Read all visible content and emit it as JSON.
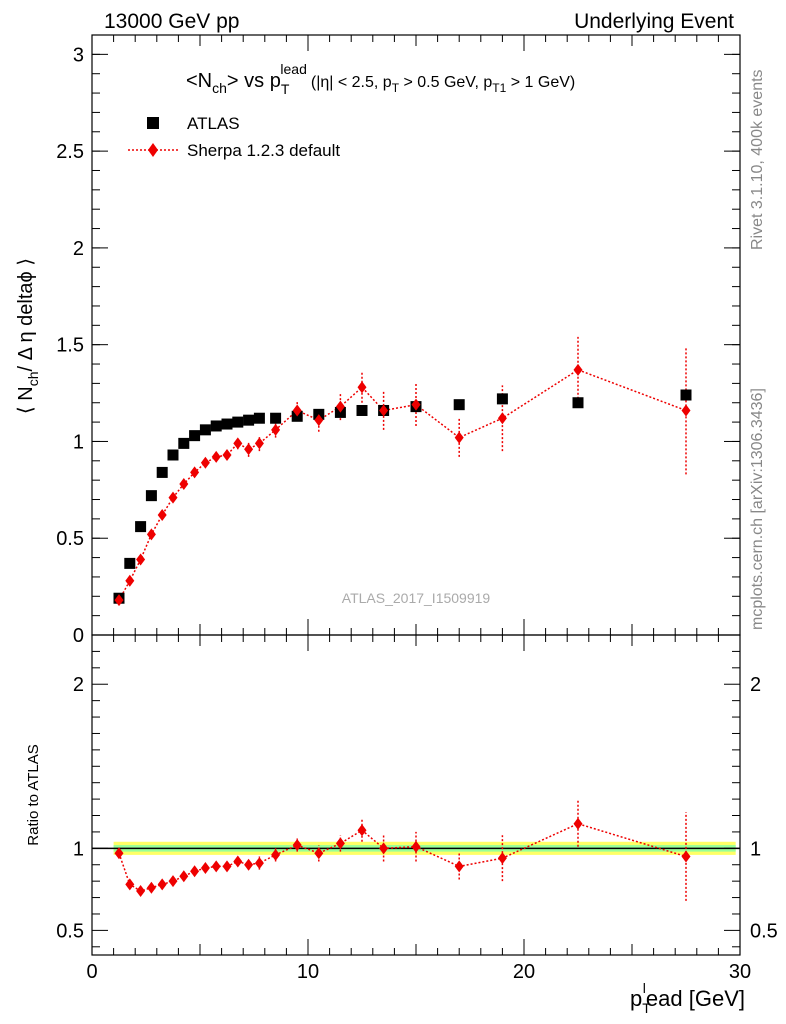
{
  "header": {
    "left": "13000 GeV pp",
    "right": "Underlying Event"
  },
  "plot_title": {
    "main_pre": "<N",
    "main_sub": "ch",
    "main_mid": "> vs p",
    "main_sub2": "T",
    "main_sup": "lead",
    "cuts_a": "(|η| < 2.5, p",
    "cuts_sub1": "T",
    "cuts_b": " > 0.5 GeV, p",
    "cuts_sub2": "T1",
    "cuts_c": " > 1 GeV)"
  },
  "side_labels": {
    "rivet": "Rivet 3.1.10,  400k events",
    "mcplots": "mcplots.cern.ch [arXiv:1306.3436]"
  },
  "analysis_label": "ATLAS_2017_I1509919",
  "y_label_main": {
    "a": "⟨ N",
    "sub": "ch",
    "b": "/ Δ η deltaϕ ⟩"
  },
  "y_label_ratio": "Ratio to ATLAS",
  "x_label": {
    "a": "p",
    "sub": "T",
    "sup": "l",
    "b": "ead [GeV]"
  },
  "legend": {
    "position": "top-left",
    "entries": [
      "ATLAS",
      "Sherpa 1.2.3 default"
    ]
  },
  "colors": {
    "data": "#000000",
    "mc": "#ee0000",
    "band_outer": "#ffff66",
    "band_inner": "#99ff99"
  },
  "chart_data": [
    {
      "type": "scatter",
      "panel": "main",
      "xlim": [
        0,
        30
      ],
      "ylim": [
        0,
        3.1
      ],
      "x_ticks": [
        0,
        10,
        20,
        30
      ],
      "y_ticks": [
        0,
        0.5,
        1,
        1.5,
        2,
        2.5,
        3
      ],
      "y_tick_labels": [
        "0",
        "0.5",
        "1",
        "1.5",
        "2",
        "2.5",
        "3"
      ],
      "series": [
        {
          "name": "ATLAS",
          "marker": "square",
          "x": [
            1.25,
            1.75,
            2.25,
            2.75,
            3.25,
            3.75,
            4.25,
            4.75,
            5.25,
            5.75,
            6.25,
            6.75,
            7.25,
            7.75,
            8.5,
            9.5,
            10.5,
            11.5,
            12.5,
            13.5,
            15.0,
            17.0,
            19.0,
            22.5,
            27.5
          ],
          "y": [
            0.19,
            0.37,
            0.56,
            0.72,
            0.84,
            0.93,
            0.99,
            1.03,
            1.06,
            1.08,
            1.09,
            1.1,
            1.11,
            1.12,
            1.12,
            1.13,
            1.14,
            1.15,
            1.16,
            1.16,
            1.18,
            1.19,
            1.22,
            1.2,
            1.24
          ]
        },
        {
          "name": "Sherpa 1.2.3 default",
          "marker": "diamond",
          "line": "dotted",
          "x": [
            1.25,
            1.75,
            2.25,
            2.75,
            3.25,
            3.75,
            4.25,
            4.75,
            5.25,
            5.75,
            6.25,
            6.75,
            7.25,
            7.75,
            8.5,
            9.5,
            10.5,
            11.5,
            12.5,
            13.5,
            15.0,
            17.0,
            19.0,
            22.5,
            27.5
          ],
          "y": [
            0.18,
            0.28,
            0.39,
            0.52,
            0.62,
            0.71,
            0.78,
            0.84,
            0.89,
            0.92,
            0.93,
            0.99,
            0.96,
            0.99,
            1.06,
            1.16,
            1.11,
            1.18,
            1.28,
            1.16,
            1.19,
            1.02,
            1.12,
            1.37,
            1.16
          ],
          "err": [
            0.01,
            0.01,
            0.01,
            0.01,
            0.01,
            0.01,
            0.01,
            0.01,
            0.01,
            0.01,
            0.02,
            0.03,
            0.04,
            0.04,
            0.04,
            0.05,
            0.06,
            0.07,
            0.08,
            0.1,
            0.11,
            0.1,
            0.17,
            0.17,
            0.33
          ]
        }
      ]
    },
    {
      "type": "scatter",
      "panel": "ratio",
      "xlim": [
        0,
        30
      ],
      "ylim": [
        0.35,
        2.3
      ],
      "x_ticks": [
        0,
        10,
        20,
        30
      ],
      "x_tick_labels": [
        "0",
        "10",
        "20",
        "30"
      ],
      "y_ticks": [
        0.5,
        1,
        2
      ],
      "y_tick_labels": [
        "0.5",
        "1",
        "2"
      ],
      "reference_line": 1,
      "band_outer_halfwidth": 0.04,
      "band_inner_halfwidth": 0.02,
      "series": [
        {
          "name": "Sherpa 1.2.3 default",
          "marker": "diamond",
          "line": "dotted",
          "x": [
            1.25,
            1.75,
            2.25,
            2.75,
            3.25,
            3.75,
            4.25,
            4.75,
            5.25,
            5.75,
            6.25,
            6.75,
            7.25,
            7.75,
            8.5,
            9.5,
            10.5,
            11.5,
            12.5,
            13.5,
            15.0,
            17.0,
            19.0,
            22.5,
            27.5
          ],
          "y": [
            0.97,
            0.78,
            0.74,
            0.76,
            0.78,
            0.8,
            0.83,
            0.86,
            0.88,
            0.89,
            0.89,
            0.92,
            0.9,
            0.91,
            0.96,
            1.02,
            0.97,
            1.03,
            1.11,
            1.0,
            1.01,
            0.89,
            0.94,
            1.15,
            0.95
          ],
          "err": [
            0.02,
            0.02,
            0.02,
            0.02,
            0.02,
            0.02,
            0.02,
            0.02,
            0.02,
            0.02,
            0.02,
            0.03,
            0.03,
            0.04,
            0.04,
            0.04,
            0.05,
            0.05,
            0.07,
            0.08,
            0.09,
            0.08,
            0.14,
            0.14,
            0.27
          ]
        }
      ]
    }
  ]
}
